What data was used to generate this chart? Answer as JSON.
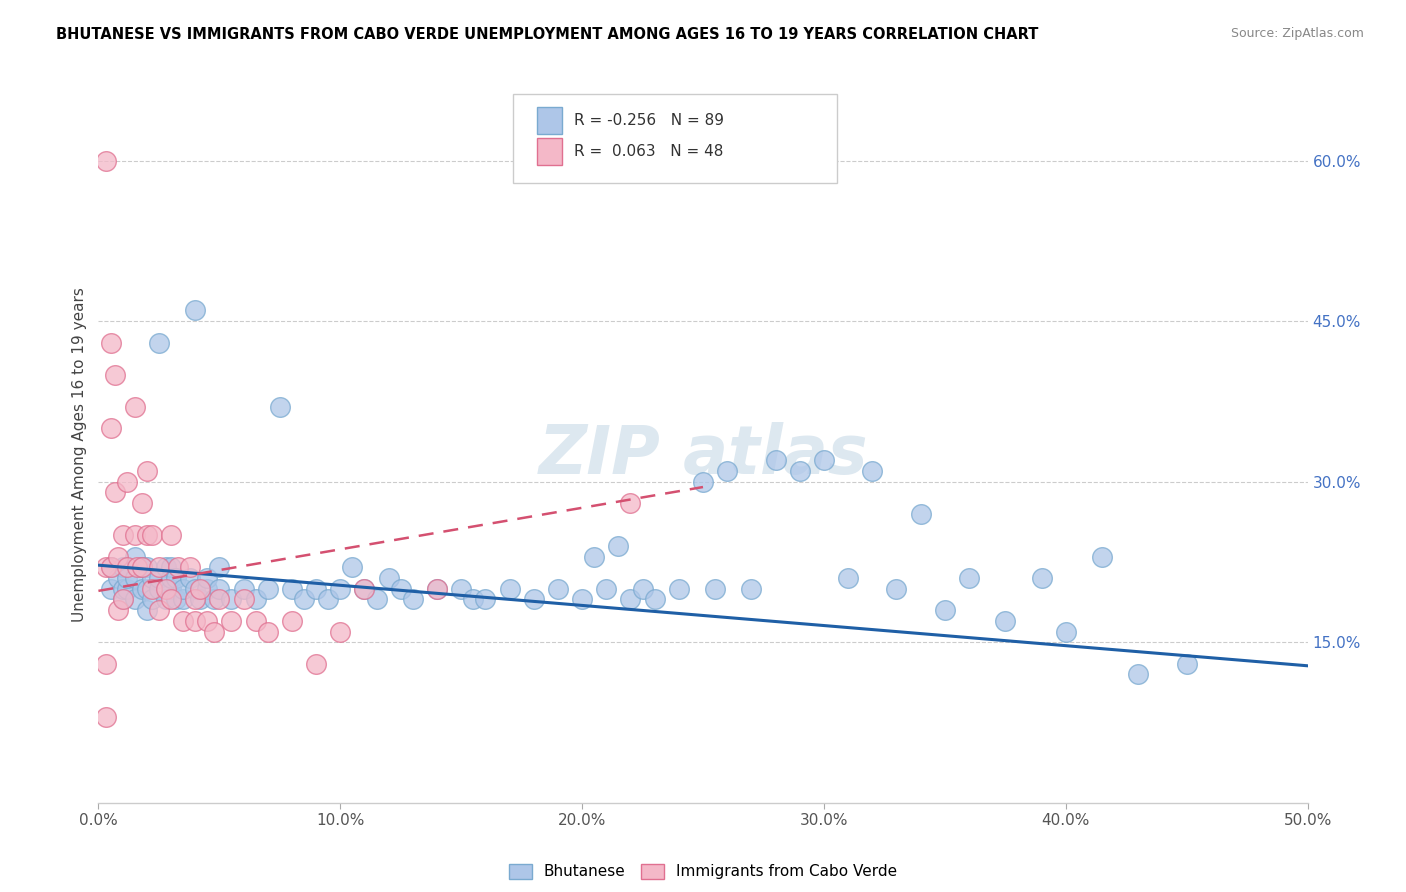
{
  "title": "BHUTANESE VS IMMIGRANTS FROM CABO VERDE UNEMPLOYMENT AMONG AGES 16 TO 19 YEARS CORRELATION CHART",
  "source": "Source: ZipAtlas.com",
  "ylabel": "Unemployment Among Ages 16 to 19 years",
  "xlim": [
    0.0,
    0.5
  ],
  "ylim": [
    0.0,
    0.65
  ],
  "xticks": [
    0.0,
    0.1,
    0.2,
    0.3,
    0.4,
    0.5
  ],
  "xticklabels": [
    "0.0%",
    "10.0%",
    "20.0%",
    "30.0%",
    "40.0%",
    "50.0%"
  ],
  "yticks_right": [
    0.15,
    0.3,
    0.45,
    0.6
  ],
  "yticklabels_right": [
    "15.0%",
    "30.0%",
    "45.0%",
    "60.0%"
  ],
  "blue_R": -0.256,
  "blue_N": 89,
  "pink_R": 0.063,
  "pink_N": 48,
  "blue_color": "#aec6e8",
  "blue_edge_color": "#7aaad0",
  "blue_line_color": "#1f5fa6",
  "pink_color": "#f4b8c8",
  "pink_edge_color": "#e07090",
  "pink_line_color": "#d45070",
  "blue_trend_start_x": 0.0,
  "blue_trend_end_x": 0.5,
  "blue_trend_start_y": 0.222,
  "blue_trend_end_y": 0.128,
  "pink_trend_start_x": 0.0,
  "pink_trend_end_x": 0.25,
  "pink_trend_start_y": 0.198,
  "pink_trend_end_y": 0.295,
  "legend_label_blue": "Bhutanese",
  "legend_label_pink": "Immigrants from Cabo Verde",
  "blue_scatter_x": [
    0.005,
    0.005,
    0.008,
    0.01,
    0.01,
    0.01,
    0.012,
    0.012,
    0.015,
    0.015,
    0.015,
    0.018,
    0.018,
    0.02,
    0.02,
    0.02,
    0.022,
    0.022,
    0.025,
    0.025,
    0.025,
    0.028,
    0.028,
    0.03,
    0.03,
    0.03,
    0.032,
    0.032,
    0.035,
    0.035,
    0.038,
    0.04,
    0.04,
    0.042,
    0.045,
    0.045,
    0.048,
    0.05,
    0.05,
    0.055,
    0.06,
    0.065,
    0.07,
    0.075,
    0.08,
    0.085,
    0.09,
    0.095,
    0.1,
    0.105,
    0.11,
    0.115,
    0.12,
    0.125,
    0.13,
    0.14,
    0.15,
    0.155,
    0.16,
    0.17,
    0.18,
    0.19,
    0.2,
    0.205,
    0.21,
    0.215,
    0.22,
    0.225,
    0.23,
    0.24,
    0.25,
    0.255,
    0.26,
    0.27,
    0.28,
    0.29,
    0.3,
    0.31,
    0.32,
    0.33,
    0.34,
    0.35,
    0.36,
    0.375,
    0.39,
    0.4,
    0.415,
    0.43,
    0.45
  ],
  "blue_scatter_y": [
    0.2,
    0.22,
    0.21,
    0.19,
    0.2,
    0.22,
    0.2,
    0.21,
    0.19,
    0.21,
    0.23,
    0.2,
    0.22,
    0.18,
    0.2,
    0.22,
    0.19,
    0.21,
    0.2,
    0.21,
    0.43,
    0.19,
    0.22,
    0.2,
    0.21,
    0.22,
    0.19,
    0.21,
    0.19,
    0.2,
    0.21,
    0.2,
    0.46,
    0.19,
    0.2,
    0.21,
    0.19,
    0.2,
    0.22,
    0.19,
    0.2,
    0.19,
    0.2,
    0.37,
    0.2,
    0.19,
    0.2,
    0.19,
    0.2,
    0.22,
    0.2,
    0.19,
    0.21,
    0.2,
    0.19,
    0.2,
    0.2,
    0.19,
    0.19,
    0.2,
    0.19,
    0.2,
    0.19,
    0.23,
    0.2,
    0.24,
    0.19,
    0.2,
    0.19,
    0.2,
    0.3,
    0.2,
    0.31,
    0.2,
    0.32,
    0.31,
    0.32,
    0.21,
    0.31,
    0.2,
    0.27,
    0.18,
    0.21,
    0.17,
    0.21,
    0.16,
    0.23,
    0.12,
    0.13
  ],
  "pink_scatter_x": [
    0.003,
    0.003,
    0.003,
    0.003,
    0.005,
    0.005,
    0.005,
    0.007,
    0.007,
    0.008,
    0.008,
    0.01,
    0.01,
    0.012,
    0.012,
    0.015,
    0.015,
    0.016,
    0.018,
    0.018,
    0.02,
    0.02,
    0.022,
    0.022,
    0.025,
    0.025,
    0.028,
    0.03,
    0.03,
    0.033,
    0.035,
    0.038,
    0.04,
    0.04,
    0.042,
    0.045,
    0.048,
    0.05,
    0.055,
    0.06,
    0.065,
    0.07,
    0.08,
    0.09,
    0.1,
    0.11,
    0.14,
    0.22
  ],
  "pink_scatter_y": [
    0.13,
    0.08,
    0.22,
    0.6,
    0.43,
    0.35,
    0.22,
    0.4,
    0.29,
    0.23,
    0.18,
    0.25,
    0.19,
    0.3,
    0.22,
    0.37,
    0.25,
    0.22,
    0.28,
    0.22,
    0.31,
    0.25,
    0.25,
    0.2,
    0.22,
    0.18,
    0.2,
    0.25,
    0.19,
    0.22,
    0.17,
    0.22,
    0.19,
    0.17,
    0.2,
    0.17,
    0.16,
    0.19,
    0.17,
    0.19,
    0.17,
    0.16,
    0.17,
    0.13,
    0.16,
    0.2,
    0.2,
    0.28
  ]
}
